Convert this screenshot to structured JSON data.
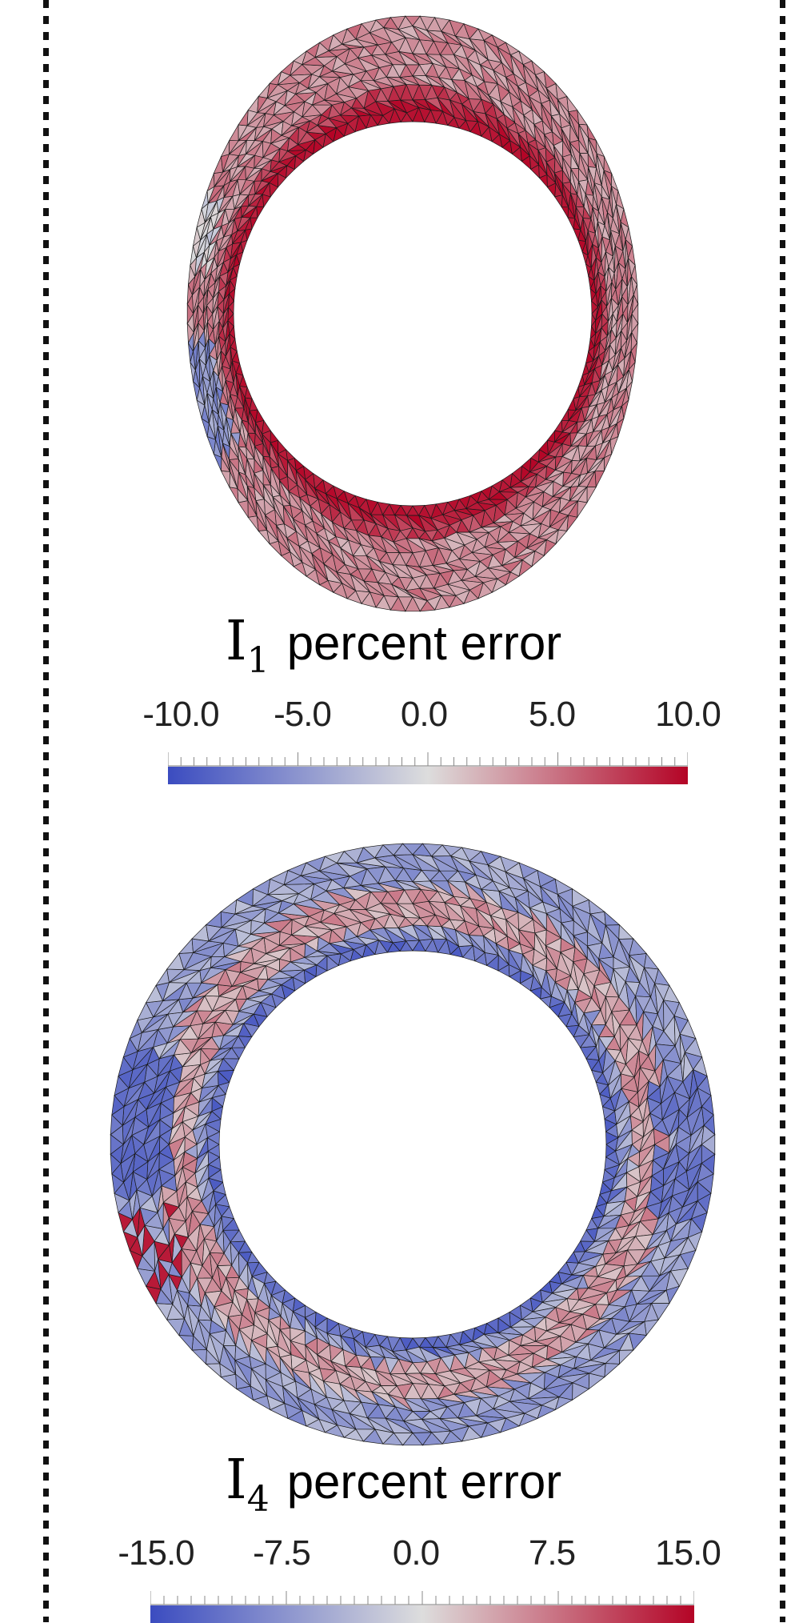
{
  "panels": [
    {
      "variable": "I",
      "subscript": "1",
      "caption": "percent error",
      "colorbar": {
        "min": -10.0,
        "max": 10.0,
        "tick_labels": [
          "-10.0",
          "-5.0",
          "0.0",
          "5.0",
          "10.0"
        ]
      },
      "colormap": "coolwarm",
      "colors": {
        "low": "#3b4cc0",
        "mid": "#dddddd",
        "high": "#b40426"
      }
    },
    {
      "variable": "I",
      "subscript": "4",
      "caption": "percent error",
      "colorbar": {
        "min": -15.0,
        "max": 15.0,
        "tick_labels": [
          "-15.0",
          "-7.5",
          "0.0",
          "7.5",
          "15.0"
        ]
      },
      "colormap": "coolwarm",
      "colors": {
        "low": "#3b4cc0",
        "mid": "#dddddd",
        "high": "#b40426"
      }
    }
  ],
  "frame": {
    "style": "dashed",
    "color": "#111111"
  }
}
